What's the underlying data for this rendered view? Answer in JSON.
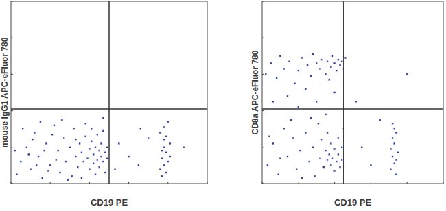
{
  "chart_data": [
    {
      "type": "scatter",
      "x_label": "CD19 PE",
      "y_label": "mouse IgG1 APC-eFluor 780",
      "xlim": [
        0,
        100
      ],
      "ylim": [
        0,
        100
      ],
      "xticks": [
        0,
        20,
        40,
        60,
        80,
        100
      ],
      "yticks": [
        0,
        20,
        40,
        60,
        80,
        100
      ],
      "tick_labels": false,
      "quadrant": {
        "x": 50,
        "y": 41
      },
      "series": [
        {
          "color": "#2b3fa6",
          "marker": "square",
          "x": [
            3,
            5,
            8,
            10,
            12,
            14,
            16,
            18,
            20,
            22,
            24,
            25,
            27,
            28,
            30,
            31,
            32,
            33,
            34,
            35,
            36,
            37,
            38,
            39,
            40,
            40,
            41,
            42,
            42,
            43,
            44,
            44,
            45,
            45,
            46,
            46,
            47,
            47,
            48,
            48,
            49,
            49,
            6,
            9,
            15,
            19,
            26,
            29,
            11,
            21,
            23,
            38,
            43,
            36,
            47,
            13,
            17,
            33,
            41,
            2,
            76,
            77,
            78,
            79,
            80,
            78,
            77,
            79,
            81,
            76,
            78,
            80,
            77,
            79,
            81,
            78,
            60,
            55,
            65,
            70,
            88,
            53,
            66
          ],
          "values": [
            5,
            12,
            20,
            8,
            28,
            15,
            3,
            22,
            10,
            32,
            18,
            6,
            25,
            12,
            20,
            4,
            30,
            15,
            9,
            22,
            17,
            12,
            26,
            14,
            19,
            8,
            23,
            16,
            11,
            20,
            13,
            27,
            18,
            9,
            15,
            22,
            12,
            29,
            17,
            6,
            20,
            14,
            30,
            16,
            34,
            7,
            35,
            2,
            24,
            27,
            13,
            33,
            5,
            3,
            36,
            10,
            18,
            24,
            30,
            18,
            8,
            14,
            20,
            26,
            12,
            31,
            4,
            17,
            22,
            28,
            10,
            34,
            18,
            6,
            15,
            24,
            15,
            22,
            10,
            25,
            20,
            8,
            30
          ]
        }
      ]
    },
    {
      "type": "scatter",
      "x_label": "CD19 PE",
      "y_label": "CD8a APC-eFluor 780",
      "xlim": [
        0,
        100
      ],
      "ylim": [
        0,
        100
      ],
      "xticks": [
        0,
        20,
        40,
        60,
        80,
        100
      ],
      "yticks": [
        0,
        20,
        40,
        60,
        80,
        100
      ],
      "tick_labels": false,
      "quadrant": {
        "x": 45,
        "y": 41
      },
      "series": [
        {
          "color": "#2b3fa6",
          "marker": "square",
          "x": [
            2,
            5,
            8,
            10,
            12,
            15,
            18,
            20,
            22,
            25,
            27,
            28,
            30,
            32,
            33,
            35,
            36,
            38,
            39,
            40,
            41,
            42,
            43,
            44,
            45,
            46,
            37,
            24,
            14,
            6,
            30,
            40,
            20,
            35,
            3,
            6,
            9,
            12,
            14,
            17,
            19,
            21,
            24,
            26,
            28,
            29,
            31,
            32,
            33,
            34,
            35,
            36,
            36,
            37,
            38,
            38,
            39,
            40,
            40,
            41,
            42,
            42,
            43,
            44,
            44,
            45,
            10,
            16,
            22,
            27,
            4,
            71,
            72,
            73,
            74,
            72,
            73,
            71,
            74,
            75,
            72,
            73,
            74,
            55,
            60,
            52,
            80,
            65
          ],
          "values": [
            60,
            66,
            58,
            70,
            63,
            67,
            55,
            62,
            69,
            65,
            59,
            71,
            66,
            63,
            68,
            60,
            67,
            64,
            70,
            66,
            62,
            68,
            65,
            67,
            63,
            69,
            57,
            52,
            48,
            45,
            45,
            50,
            42,
            38,
            10,
            22,
            5,
            30,
            15,
            25,
            8,
            18,
            28,
            12,
            20,
            4,
            33,
            14,
            24,
            9,
            18,
            13,
            28,
            16,
            10,
            22,
            14,
            19,
            7,
            12,
            25,
            16,
            9,
            20,
            13,
            30,
            14,
            35,
            3,
            36,
            26,
            8,
            15,
            22,
            28,
            33,
            11,
            19,
            5,
            17,
            25,
            30,
            13,
            20,
            10,
            45,
            60,
            35
          ]
        }
      ]
    }
  ]
}
